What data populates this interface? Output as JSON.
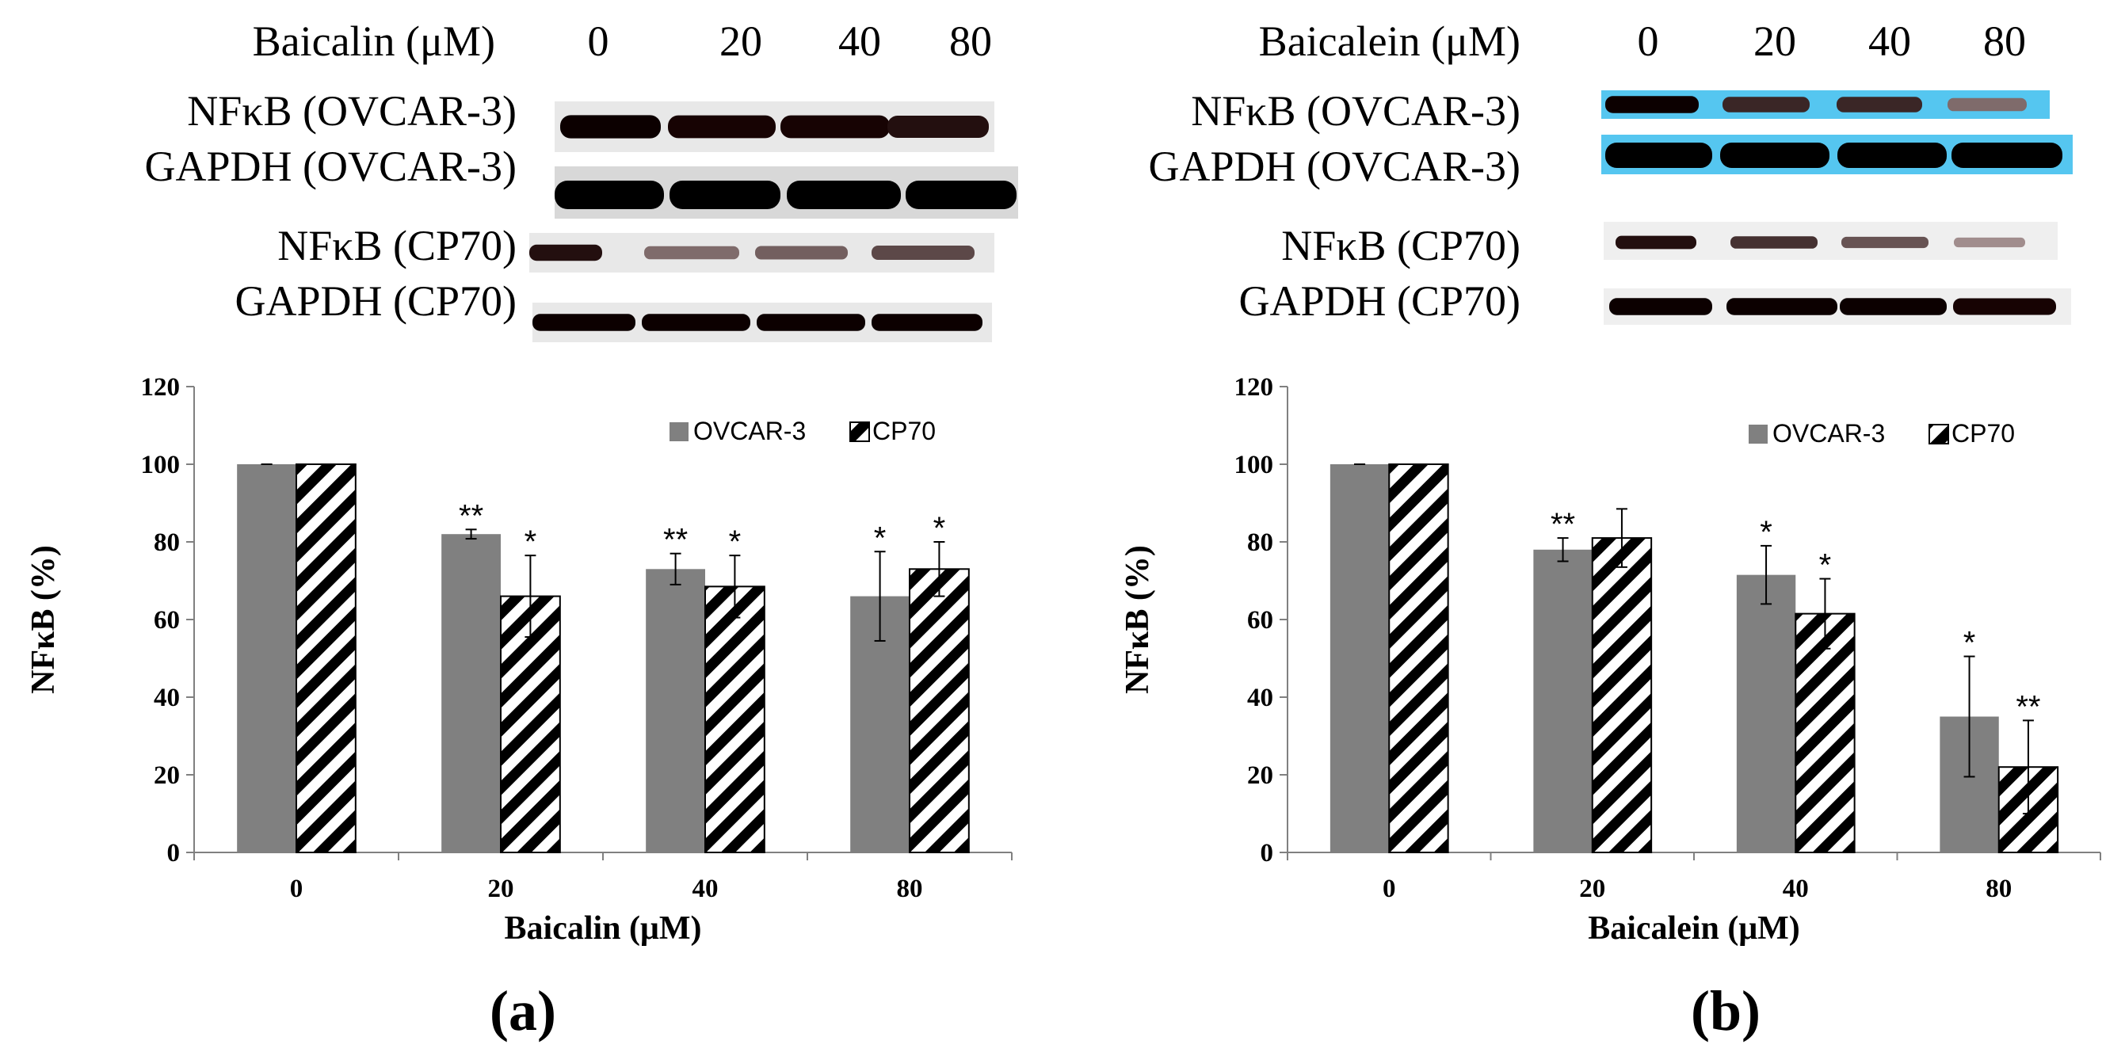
{
  "colors": {
    "ovcar_bar": "#808080",
    "cp70_stripe": "#000000",
    "blue_blot_bg": "#55c6f0"
  },
  "panels": [
    {
      "label": "a",
      "blot": {
        "treatment_label": "Baicalin (μM)",
        "doses": [
          "0",
          "20",
          "40",
          "80"
        ],
        "rows": [
          "NFκB (OVCAR-3)",
          "GAPDH (OVCAR-3)",
          "NFκB (CP70)",
          "GAPDH (CP70)"
        ],
        "band_intensity": [
          [
            0.95,
            0.9,
            0.9,
            0.85
          ],
          [
            1.0,
            1.0,
            1.0,
            1.0
          ],
          [
            0.85,
            0.45,
            0.5,
            0.6
          ],
          [
            0.95,
            0.95,
            0.95,
            0.95
          ]
        ]
      },
      "chart": {
        "type": "bar",
        "categories": [
          "0",
          "20",
          "40",
          "80"
        ],
        "series": [
          {
            "name": "OVCAR-3",
            "values": [
              100,
              82,
              73,
              66
            ],
            "errors": [
              0,
              1.2,
              4,
              11.5
            ],
            "stars": [
              "",
              "**",
              "**",
              "*"
            ]
          },
          {
            "name": "CP70",
            "values": [
              100,
              66,
              68.5,
              73
            ],
            "errors": [
              0,
              10.5,
              8,
              7
            ],
            "stars": [
              "",
              "*",
              "*",
              "*"
            ]
          }
        ],
        "ylim": [
          0,
          120
        ],
        "yticks": [
          "0",
          "20",
          "40",
          "60",
          "80",
          "100",
          "120"
        ],
        "xlabel": "Baicalin (μM)",
        "ylabel": "NFκB (%)",
        "legend_position": "top-right"
      }
    },
    {
      "label": "b",
      "blot": {
        "treatment_label": "Baicalein (μM)",
        "doses": [
          "0",
          "20",
          "40",
          "80"
        ],
        "rows": [
          "NFκB (OVCAR-3)",
          "GAPDH (OVCAR-3)",
          "NFκB (CP70)",
          "GAPDH (CP70)"
        ],
        "band_intensity": [
          [
            0.95,
            0.75,
            0.75,
            0.45
          ],
          [
            1.0,
            1.0,
            1.0,
            1.0
          ],
          [
            0.85,
            0.7,
            0.55,
            0.3
          ],
          [
            0.95,
            0.95,
            0.95,
            0.9
          ]
        ]
      },
      "chart": {
        "type": "bar",
        "categories": [
          "0",
          "20",
          "40",
          "80"
        ],
        "series": [
          {
            "name": "OVCAR-3",
            "values": [
              100,
              78,
              71.5,
              35
            ],
            "errors": [
              0,
              3,
              7.5,
              15.5
            ],
            "stars": [
              "",
              "**",
              "*",
              "*"
            ]
          },
          {
            "name": "CP70",
            "values": [
              100,
              81,
              61.5,
              22
            ],
            "errors": [
              0,
              7.5,
              9,
              12
            ],
            "stars": [
              "",
              "",
              "*",
              "**"
            ]
          }
        ],
        "ylim": [
          0,
          120
        ],
        "yticks": [
          "0",
          "20",
          "40",
          "60",
          "80",
          "100",
          "120"
        ],
        "xlabel": "Baicalein (μM)",
        "ylabel": "NFκB (%)",
        "legend_position": "top-right"
      }
    }
  ]
}
